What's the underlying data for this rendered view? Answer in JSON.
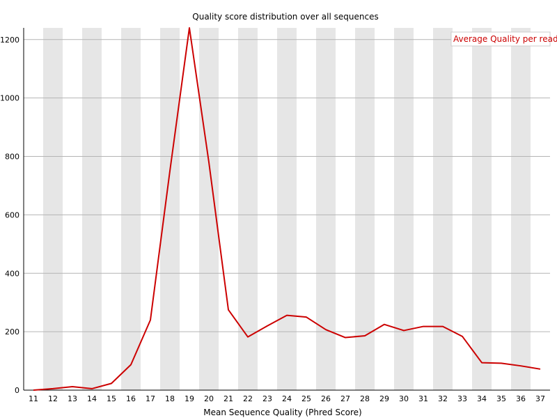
{
  "chart_data": {
    "type": "line",
    "title": "Quality score distribution over all sequences",
    "xlabel": "Mean Sequence Quality (Phred Score)",
    "ylabel": "",
    "x": [
      11,
      12,
      13,
      14,
      15,
      16,
      17,
      18,
      19,
      20,
      21,
      22,
      23,
      24,
      25,
      26,
      27,
      28,
      29,
      30,
      31,
      32,
      33,
      34,
      35,
      36,
      37
    ],
    "series": [
      {
        "name": "Average Quality per read",
        "color": "#cc0000",
        "values": [
          0,
          5,
          12,
          5,
          23,
          87,
          240,
          750,
          1240,
          780,
          275,
          182,
          220,
          256,
          250,
          207,
          180,
          186,
          225,
          204,
          218,
          218,
          184,
          94,
          92,
          83,
          72
        ]
      }
    ],
    "ylim": [
      0,
      1240
    ],
    "yticks": [
      0,
      200,
      400,
      600,
      800,
      1000,
      1200
    ],
    "xlim": [
      11,
      37
    ],
    "grid": true,
    "alternating_bands": true,
    "band_color": "#e6e6e6",
    "legend_position": "top-right"
  }
}
